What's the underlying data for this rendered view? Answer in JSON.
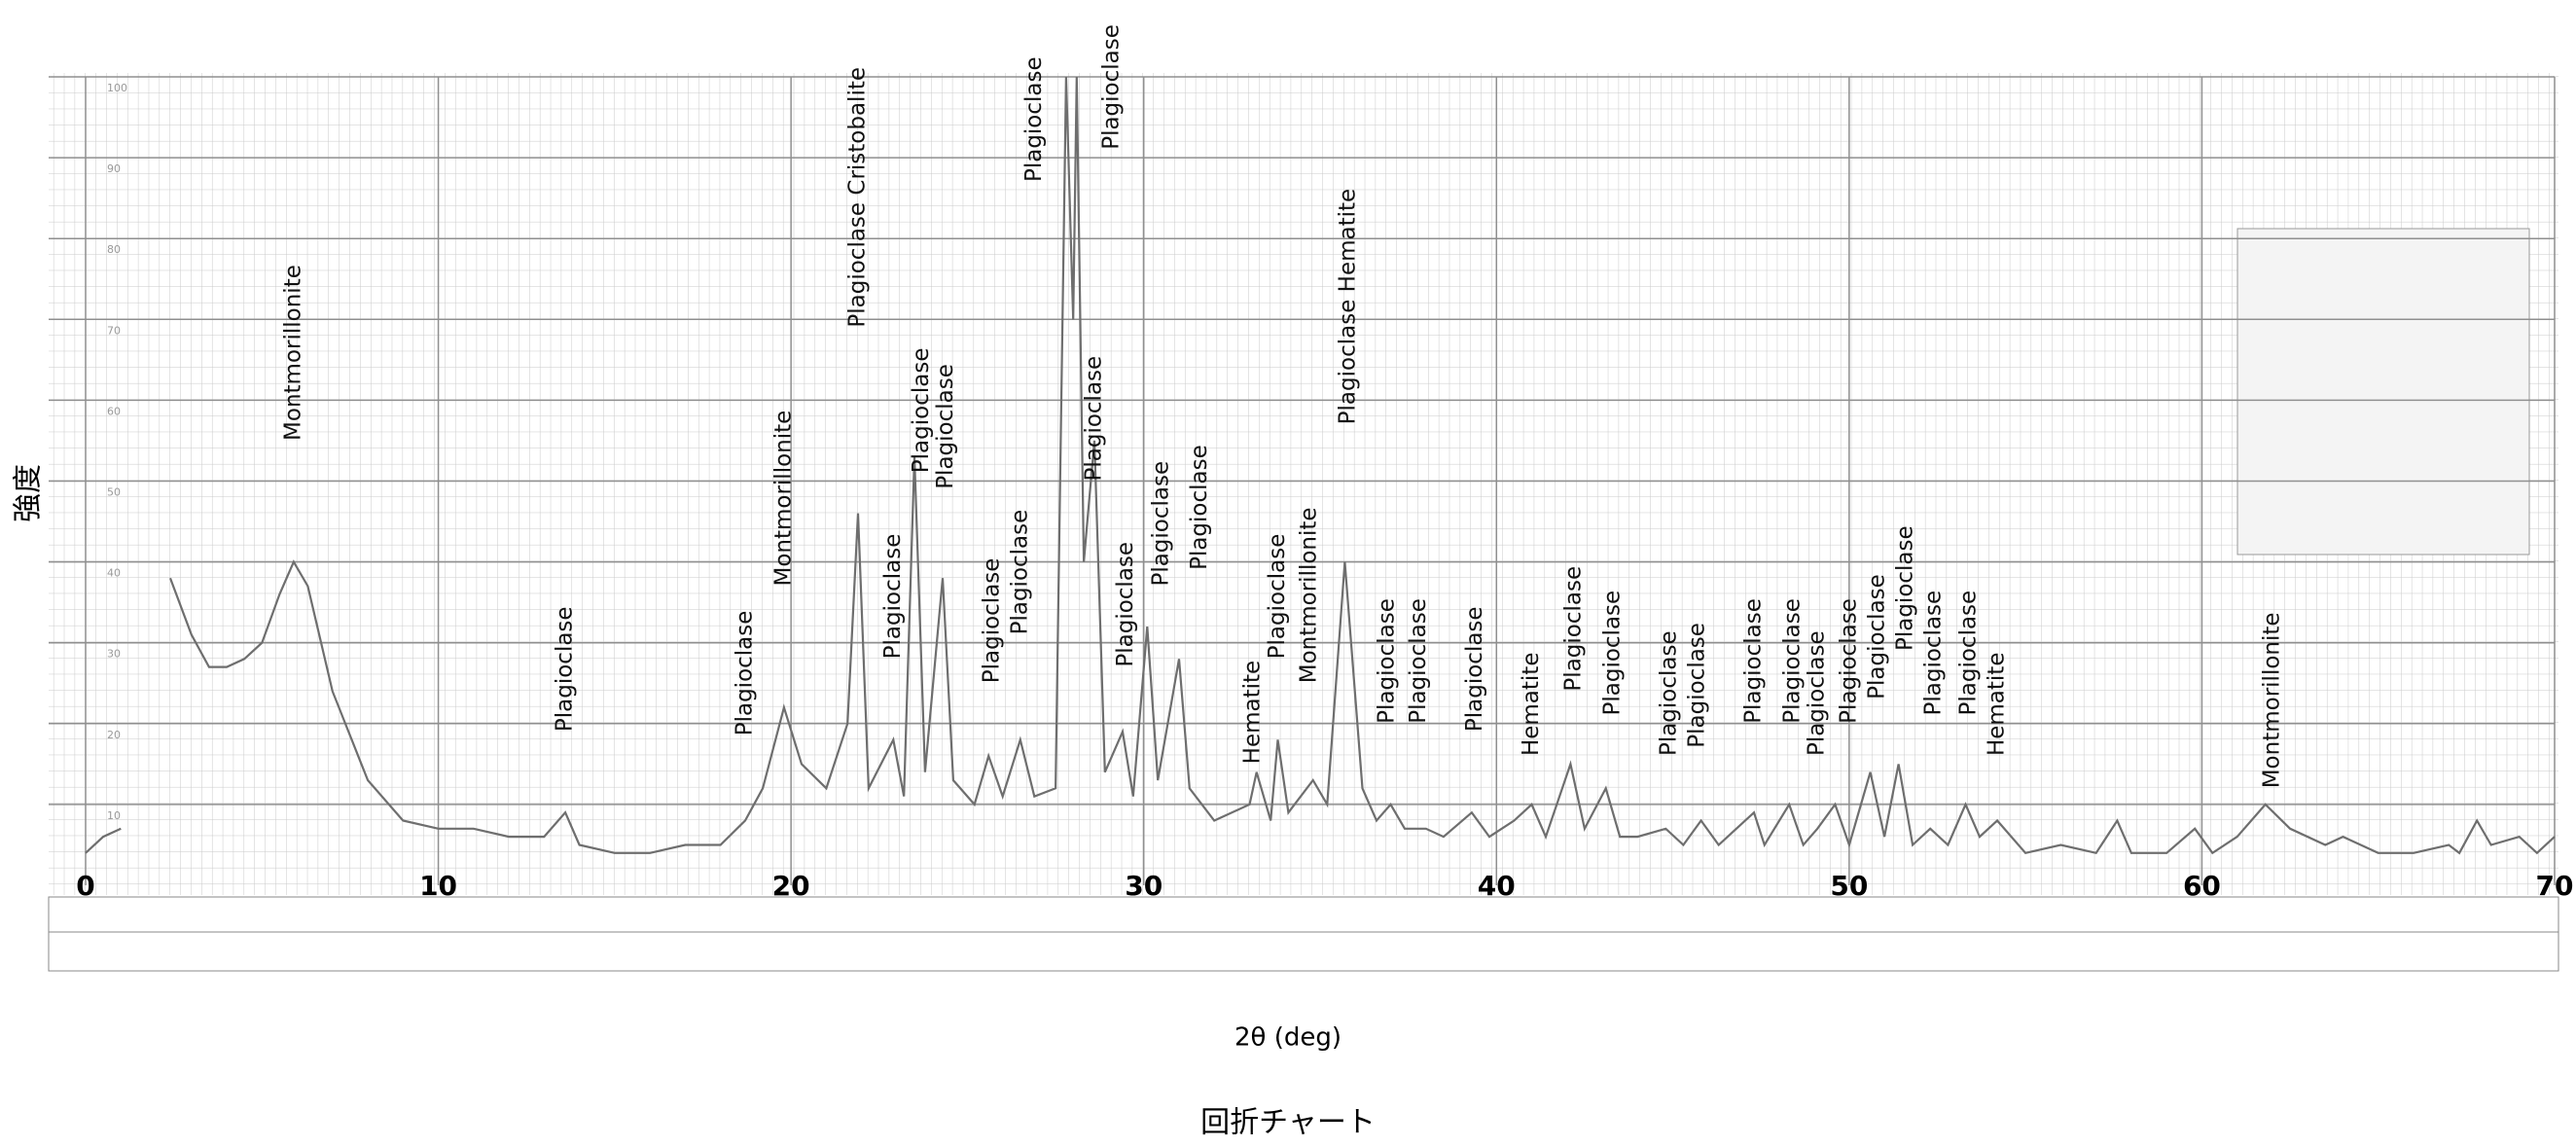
{
  "chart_data": {
    "type": "line",
    "title": "回折チャート",
    "xlabel": "2θ (deg)",
    "ylabel": "強度",
    "x": [
      0,
      0.5,
      1,
      1.5,
      2.4,
      3,
      3.5,
      4,
      4.5,
      5,
      5.5,
      5.9,
      6.3,
      7,
      8,
      9,
      10,
      11,
      12,
      13,
      13.6,
      14,
      15,
      16,
      17,
      18,
      18.7,
      19.2,
      19.8,
      20.3,
      21,
      21.6,
      21.9,
      22.2,
      22.9,
      23.2,
      23.5,
      23.8,
      24.3,
      24.6,
      25.2,
      25.6,
      26,
      26.5,
      26.9,
      27.5,
      27.8,
      28.0,
      28.1,
      28.3,
      28.6,
      28.9,
      29.4,
      29.7,
      30.1,
      30.4,
      31.0,
      31.3,
      32,
      33,
      33.2,
      33.6,
      33.8,
      34.1,
      34.8,
      35.2,
      35.7,
      36.2,
      36.6,
      37,
      37.4,
      38,
      38.5,
      39.3,
      39.8,
      40.5,
      41,
      41.4,
      42.1,
      42.5,
      43.1,
      43.5,
      44,
      44.8,
      45.3,
      45.8,
      46.3,
      47.3,
      47.6,
      48.3,
      48.7,
      49.1,
      49.6,
      50,
      50.6,
      51,
      51.4,
      51.8,
      52.3,
      52.8,
      53.3,
      53.7,
      54.2,
      55,
      56,
      57,
      57.6,
      58,
      59,
      59.8,
      60.3,
      61,
      61.8,
      62.5,
      63.5,
      64,
      65,
      66,
      67,
      67.3,
      67.8,
      68.2,
      69,
      69.5,
      70
    ],
    "values": [
      4,
      6,
      7,
      null,
      38,
      31,
      27,
      27,
      28,
      30,
      36,
      40,
      37,
      24,
      13,
      8,
      7,
      7,
      6,
      6,
      9,
      5,
      4,
      4,
      5,
      5,
      8,
      12,
      22,
      15,
      12,
      20,
      46,
      12,
      18,
      11,
      53,
      14,
      38,
      13,
      10,
      16,
      11,
      18,
      11,
      12,
      100,
      70,
      100,
      40,
      55,
      14,
      19,
      11,
      32,
      13,
      28,
      12,
      8,
      10,
      14,
      8,
      18,
      9,
      13,
      10,
      40,
      12,
      8,
      10,
      7,
      7,
      6,
      9,
      6,
      8,
      10,
      6,
      15,
      7,
      12,
      6,
      6,
      7,
      5,
      8,
      5,
      9,
      5,
      10,
      5,
      7,
      10,
      5,
      14,
      6,
      15,
      5,
      7,
      5,
      10,
      6,
      8,
      4,
      5,
      4,
      8,
      4,
      4,
      7,
      4,
      6,
      10,
      7,
      5,
      6,
      4,
      4,
      5,
      4,
      8,
      5,
      6,
      4,
      6
    ],
    "color": "#6e6e6e",
    "xlim": [
      0,
      70
    ],
    "xticks": [
      0,
      10,
      20,
      30,
      40,
      50,
      60,
      70
    ],
    "ylim": [
      0,
      100
    ],
    "yticks": [
      10,
      20,
      30,
      40,
      50,
      60,
      70,
      80,
      90,
      100
    ],
    "grid": true,
    "annotations": [
      {
        "text": "Montmorillonite",
        "x": 5.9,
        "y": 55
      },
      {
        "text": "Plagioclase",
        "x": 13.6,
        "y": 19
      },
      {
        "text": "Plagioclase",
        "x": 18.7,
        "y": 18.5
      },
      {
        "text": "Montmorillonite",
        "x": 19.8,
        "y": 37
      },
      {
        "text": "Plagioclase Cristobalite",
        "x": 21.9,
        "y": 69
      },
      {
        "text": "Plagioclase",
        "x": 22.9,
        "y": 28
      },
      {
        "text": "Plagioclase",
        "x": 23.7,
        "y": 51
      },
      {
        "text": "Plagioclase",
        "x": 24.4,
        "y": 49
      },
      {
        "text": "Plagioclase",
        "x": 25.7,
        "y": 25
      },
      {
        "text": "Plagioclase",
        "x": 26.5,
        "y": 31
      },
      {
        "text": "Plagioclase",
        "x": 26.9,
        "y": 87
      },
      {
        "text": "Plagioclase",
        "x": 29.1,
        "y": 91
      },
      {
        "text": "Plagioclase",
        "x": 28.6,
        "y": 50
      },
      {
        "text": "Plagioclase",
        "x": 29.5,
        "y": 27
      },
      {
        "text": "Plagioclase",
        "x": 30.5,
        "y": 37
      },
      {
        "text": "Plagioclase",
        "x": 31.6,
        "y": 39
      },
      {
        "text": "Hematite",
        "x": 33.1,
        "y": 15
      },
      {
        "text": "Plagioclase",
        "x": 33.8,
        "y": 28
      },
      {
        "text": "Montmorillonite",
        "x": 34.7,
        "y": 25
      },
      {
        "text": "Plagioclase Hematite",
        "x": 35.8,
        "y": 57
      },
      {
        "text": "Plagioclase",
        "x": 36.9,
        "y": 20
      },
      {
        "text": "Plagioclase",
        "x": 37.8,
        "y": 20
      },
      {
        "text": "Plagioclase",
        "x": 39.4,
        "y": 19
      },
      {
        "text": "Hematite",
        "x": 41.0,
        "y": 16
      },
      {
        "text": "Plagioclase",
        "x": 42.2,
        "y": 24
      },
      {
        "text": "Plagioclase",
        "x": 43.3,
        "y": 21
      },
      {
        "text": "Plagioclase",
        "x": 44.9,
        "y": 16
      },
      {
        "text": "Plagioclase",
        "x": 45.7,
        "y": 17
      },
      {
        "text": "Plagioclase",
        "x": 47.3,
        "y": 20
      },
      {
        "text": "Plagioclase",
        "x": 48.4,
        "y": 20
      },
      {
        "text": "Plagioclase",
        "x": 49.1,
        "y": 16
      },
      {
        "text": "Plagioclase",
        "x": 50.0,
        "y": 20
      },
      {
        "text": "Plagioclase",
        "x": 50.8,
        "y": 23
      },
      {
        "text": "Plagioclase",
        "x": 51.6,
        "y": 29
      },
      {
        "text": "Plagioclase",
        "x": 52.4,
        "y": 21
      },
      {
        "text": "Plagioclase",
        "x": 53.4,
        "y": 21
      },
      {
        "text": "Hematite",
        "x": 54.2,
        "y": 16
      },
      {
        "text": "Montmorillonite",
        "x": 62.0,
        "y": 12
      }
    ]
  }
}
